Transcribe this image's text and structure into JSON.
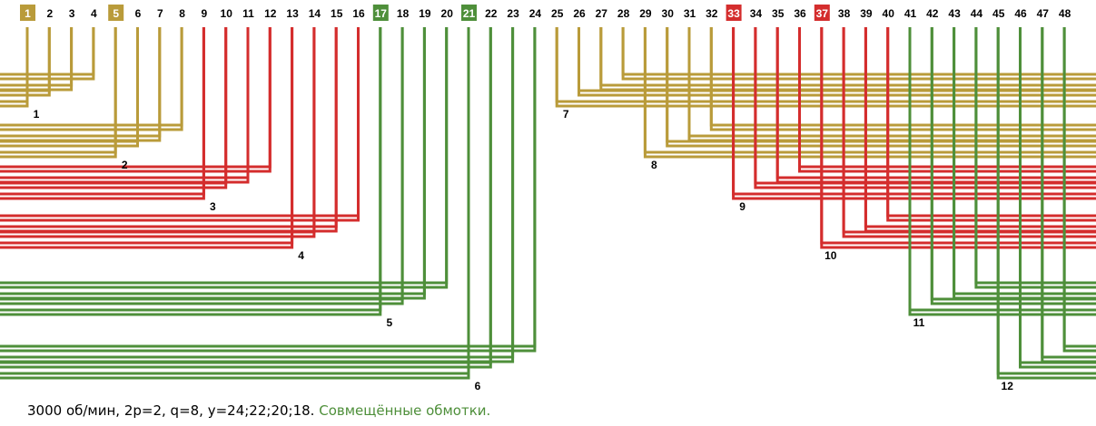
{
  "slots": [
    "1",
    "2",
    "3",
    "4",
    "5",
    "6",
    "7",
    "8",
    "9",
    "10",
    "11",
    "12",
    "13",
    "14",
    "15",
    "16",
    "17",
    "18",
    "19",
    "20",
    "21",
    "22",
    "23",
    "24",
    "25",
    "26",
    "27",
    "28",
    "29",
    "30",
    "31",
    "32",
    "33",
    "34",
    "35",
    "36",
    "37",
    "38",
    "39",
    "40",
    "41",
    "42",
    "43",
    "44",
    "45",
    "46",
    "47",
    "48"
  ],
  "highlighted_slots": [
    {
      "slot": 1,
      "color": "#b99b3a"
    },
    {
      "slot": 5,
      "color": "#b99b3a"
    },
    {
      "slot": 17,
      "color": "#4e8f3a"
    },
    {
      "slot": 21,
      "color": "#4e8f3a"
    },
    {
      "slot": 33,
      "color": "#d42d2d"
    },
    {
      "slot": 37,
      "color": "#d42d2d"
    }
  ],
  "phase_colors": {
    "phase_a": "#b99b3a",
    "phase_b": "#d42d2d",
    "phase_c": "#4e8f3a"
  },
  "groups": [
    {
      "label": "1",
      "phase": "phase_a",
      "slots": [
        1,
        2,
        3,
        4
      ],
      "label_slot": 1
    },
    {
      "label": "2",
      "phase": "phase_a",
      "slots": [
        5,
        6,
        7,
        8
      ],
      "label_slot": 5
    },
    {
      "label": "3",
      "phase": "phase_b",
      "slots": [
        9,
        10,
        11,
        12
      ],
      "label_slot": 9
    },
    {
      "label": "4",
      "phase": "phase_b",
      "slots": [
        13,
        14,
        15,
        16
      ],
      "label_slot": 13
    },
    {
      "label": "5",
      "phase": "phase_c",
      "slots": [
        17,
        18,
        19,
        20
      ],
      "label_slot": 17
    },
    {
      "label": "6",
      "phase": "phase_c",
      "slots": [
        21,
        22,
        23,
        24
      ],
      "label_slot": 21
    },
    {
      "label": "7",
      "phase": "phase_a",
      "slots": [
        25,
        26,
        27,
        28
      ],
      "label_slot": 25
    },
    {
      "label": "8",
      "phase": "phase_a",
      "slots": [
        29,
        30,
        31,
        32
      ],
      "label_slot": 29
    },
    {
      "label": "9",
      "phase": "phase_b",
      "slots": [
        33,
        34,
        35,
        36
      ],
      "label_slot": 33
    },
    {
      "label": "10",
      "phase": "phase_b",
      "slots": [
        37,
        38,
        39,
        40
      ],
      "label_slot": 37
    },
    {
      "label": "11",
      "phase": "phase_c",
      "slots": [
        41,
        42,
        43,
        44
      ],
      "label_slot": 41
    },
    {
      "label": "12",
      "phase": "phase_c",
      "slots": [
        45,
        46,
        47,
        48
      ],
      "label_slot": 45
    }
  ],
  "caption": {
    "main": "3000 об/мин, 2p=2, q=8, y=24;22;20;18.",
    "highlight": "Совмещённые обмотки."
  }
}
